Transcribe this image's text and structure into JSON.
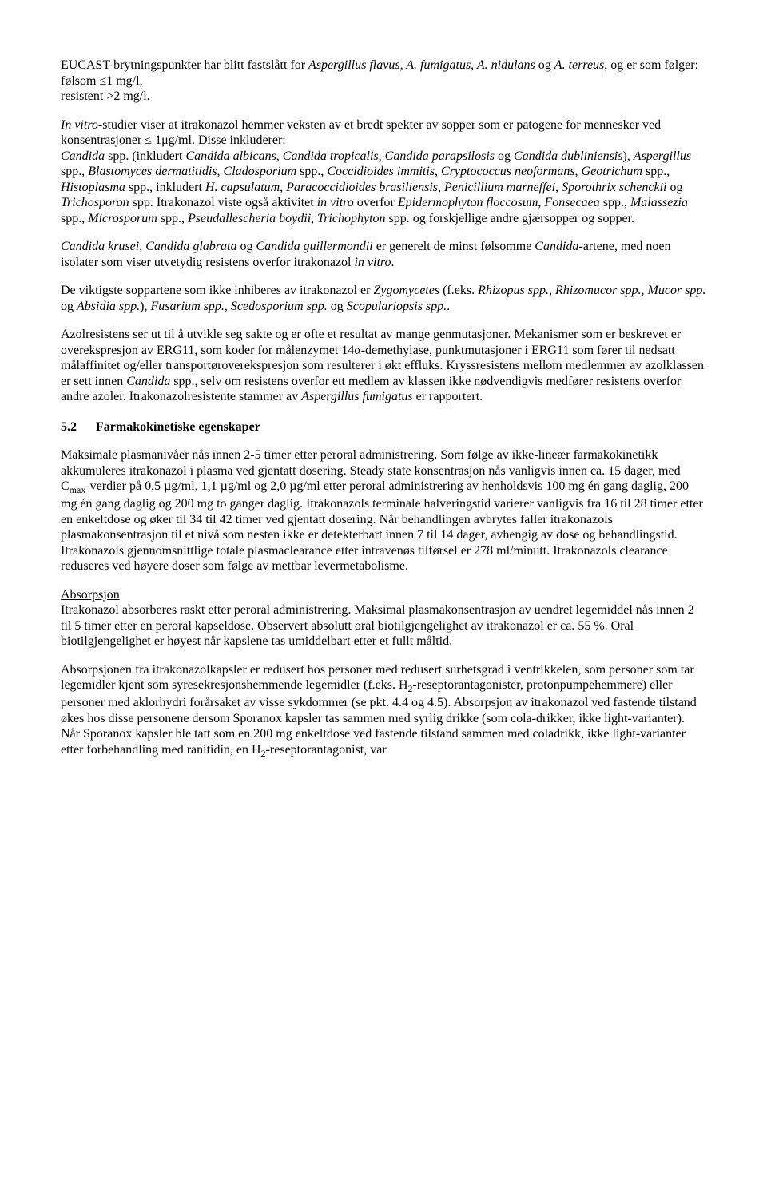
{
  "p1a": "EUCAST-brytningspunkter har blitt fastslått for ",
  "p1b": "Aspergillus flavus, A. fumigatus, A. nidulans",
  "p1c": " og ",
  "p1d": "A. terreus",
  "p1e": ", og er som følger:",
  "p1f": "følsom ≤1 mg/l,",
  "p1g": "resistent >2 mg/l.",
  "p2a": "In vitro",
  "p2b": "-studier viser at itrakonazol hemmer veksten av et bredt spekter av sopper som er patogene for mennesker ved konsentrasjoner ≤ 1μg/ml. Disse inkluderer:",
  "p2c": "Candida",
  "p2d": " spp. (inkludert ",
  "p2e": "Candida albicans",
  "p2f": ", ",
  "p2g": "Candida tropicalis, Candida parapsilosis",
  "p2h": " og ",
  "p2i": "Candida dubliniensis",
  "p2j": "), ",
  "p2k": "Aspergillus",
  "p2l": " spp., ",
  "p2m": "Blastomyces dermatitidis",
  "p2n": ", ",
  "p2o": "Cladosporium",
  "p2p": " spp., ",
  "p2q": "Coccidioides immitis",
  "p2r": ", ",
  "p2s": "Cryptococcus neoformans",
  "p2t": ", ",
  "p2u": "Geotrichum",
  "p2v": " spp., ",
  "p2w": "Histoplasma",
  "p2x": " spp., inkludert ",
  "p2y": "H. capsulatum",
  "p2z": ", ",
  "p2aa": "Paracoccidioides brasiliensis",
  "p2ab": ", ",
  "p2ac": "Penicillium marneffei",
  "p2ad": ", ",
  "p2ae": "Sporothrix schenckii",
  "p2af": " og ",
  "p2ag": "Trichosporon",
  "p2ah": " spp. Itrakonazol viste også aktivitet ",
  "p2ai": "in vitro",
  "p2aj": " overfor ",
  "p2ak": "Epidermophyton floccosum",
  "p2al": ", ",
  "p2am": "Fonsecaea",
  "p2an": " spp., ",
  "p2ao": "Malassezia",
  "p2ap": " spp., ",
  "p2aq": "Microsporum",
  "p2ar": " spp., ",
  "p2as": "Pseudallescheria boydii",
  "p2at": ", ",
  "p2au": "Trichophyton",
  "p2av": " spp. og forskjellige andre gjærsopper og sopper.",
  "p3a": "Candida krusei, Candida glabrata",
  "p3b": " og ",
  "p3c": "Candida guillermondii",
  "p3d": " er generelt de minst følsomme ",
  "p3e": "Candida",
  "p3f": "-artene, med noen isolater som viser utvetydig resistens overfor itrakonazol ",
  "p3g": "in vitro",
  "p3h": ".",
  "p4a": "De viktigste soppartene som ikke inhiberes av itrakonazol er ",
  "p4b": "Zygomycetes",
  "p4c": " (f.eks. ",
  "p4d": "Rhizopus spp.",
  "p4e": ", ",
  "p4f": "Rhizomucor spp.",
  "p4g": ", ",
  "p4h": "Mucor spp.",
  "p4i": " og ",
  "p4j": "Absidia spp.",
  "p4k": "), ",
  "p4l": "Fusarium spp.",
  "p4m": ", ",
  "p4n": "Scedosporium spp.",
  "p4o": " og ",
  "p4p": "Scopulariopsis spp.",
  "p4q": ".",
  "p5a": "Azolresistens ser ut til å utvikle seg sakte og er ofte et resultat av mange genmutasjoner. Mekanismer som er beskrevet er overekspresjon av ERG11, som koder for målenzymet 14α-demethylase, punktmutasjoner i ERG11 som fører til nedsatt målaffinitet og/eller transportøroverekspresjon som resulterer i økt effluks. Kryssresistens mellom medlemmer av azolklassen er sett innen ",
  "p5b": "Candida",
  "p5c": " spp., selv om resistens overfor ett medlem av klassen ikke nødvendigvis medfører resistens overfor andre azoler. Itrakonazolresistente stammer av ",
  "p5d": "Aspergillus fumigatus",
  "p5e": " er rapportert.",
  "sec_num": "5.2",
  "sec_title": "Farmakokinetiske egenskaper",
  "p6a": "Maksimale plasmanivåer nås innen 2-5 timer etter peroral administrering. Som følge av ikke-lineær farmakokinetikk akkumuleres itrakonazol i plasma ved gjentatt dosering. Steady state konsentrasjon nås vanligvis innen ca. 15 dager, med C",
  "p6sub": "max",
  "p6b": "-verdier på 0,5 µg/ml, 1,1 µg/ml og 2,0 µg/ml etter peroral administrering av henholdsvis 100 mg én gang daglig, 200 mg én gang daglig og 200 mg to ganger daglig. Itrakonazols terminale halveringstid varierer vanligvis fra 16 til 28 timer etter en enkeltdose og øker til 34 til 42 timer ved gjentatt dosering. Når behandlingen avbrytes faller itrakonazols plasmakonsentrasjon til et nivå som nesten ikke er detekterbart innen 7 til 14 dager, avhengig av dose og behandlingstid. Itrakonazols gjennomsnittlige totale plasmaclearance etter intravenøs tilførsel er 278 ml/minutt. Itrakonazols clearance reduseres ved høyere doser som følge av mettbar levermetabolisme.",
  "abs_head": "Absorpsjon",
  "p7": "Itrakonazol absorberes raskt etter peroral administrering. Maksimal plasmakonsentrasjon av uendret legemiddel nås innen 2 til 5 timer etter en peroral kapseldose. Observert absolutt oral biotilgjengelighet av itrakonazol er ca. 55 %. Oral biotilgjengelighet er høyest når kapslene tas umiddelbart etter et fullt måltid.",
  "p8a": "Absorpsjonen fra itrakonazolkapsler er redusert hos personer med redusert surhetsgrad i ventrikkelen, som personer som tar legemidler kjent som syresekresjonshemmende legemidler (f.eks. H",
  "p8sub1": "2",
  "p8b": "-reseptorantagonister, protonpumpehemmere) eller personer med aklorhydri forårsaket av visse sykdommer (se pkt. 4.4 og 4.5). Absorpsjon av itrakonazol ved fastende tilstand økes hos disse personene dersom Sporanox kapsler tas sammen med syrlig drikke (som cola-drikker, ikke light-varianter). Når Sporanox kapsler ble tatt som en 200 mg enkeltdose ved fastende tilstand sammen med coladrikk, ikke light-varianter etter forbehandling med ranitidin, en H",
  "p8sub2": "2",
  "p8c": "-reseptorantagonist, var"
}
